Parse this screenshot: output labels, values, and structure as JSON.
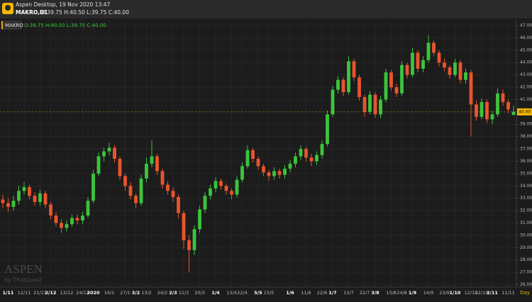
{
  "header": {
    "app_title": "Aspen Desktop, 19 Nov 2020 13:47",
    "symbol": "MAKRO,D1",
    "ohlc": "O:39.75 H:40.50 L:39.75 C:40.00"
  },
  "chart_data": {
    "type": "candlestick",
    "legend_label": "MAKRO",
    "legend_ohlc": "O:39.75 H:40.50 L:39.75 C:40.00",
    "watermark": {
      "title": "ASPEN",
      "subtitle": "by ThaiQuest"
    },
    "timeframe": "Day",
    "up_color": "#3cc43c",
    "down_color": "#e8552d",
    "last_price": {
      "value": 40,
      "label": "40.00"
    },
    "categories": [
      null,
      "1/11",
      null,
      null,
      "12/11",
      null,
      null,
      "21/11",
      null,
      "2/12",
      null,
      null,
      "13/12",
      null,
      null,
      "24/12",
      null,
      "2020",
      null,
      null,
      "16/1",
      null,
      null,
      "27/1",
      null,
      "3/2",
      null,
      "13/2",
      null,
      null,
      "24/2",
      null,
      "2/3",
      null,
      "11/3",
      null,
      null,
      "20/3",
      null,
      null,
      "1/4",
      null,
      null,
      "13/4",
      null,
      "22/4",
      null,
      null,
      "5/5",
      null,
      "15/5",
      null,
      null,
      null,
      "1/6",
      null,
      null,
      "11/6",
      null,
      null,
      "22/6",
      null,
      "1/7",
      null,
      null,
      "13/7",
      null,
      null,
      "22/7",
      null,
      "3/8",
      null,
      null,
      "13/8",
      null,
      "24/8",
      null,
      "1/9",
      null,
      null,
      "14/9",
      null,
      null,
      "23/9",
      null,
      "1/10",
      null,
      null,
      "12/10",
      null,
      "22/10",
      null,
      "2/11",
      null,
      null,
      "11/11",
      null
    ],
    "open": [
      32.9,
      32.6,
      32.3,
      32.8,
      33.6,
      33.9,
      33.2,
      32.7,
      33.4,
      32.5,
      31.6,
      31.0,
      30.6,
      30.9,
      31.4,
      31.2,
      31.6,
      32.8,
      35.0,
      36.4,
      36.8,
      37.1,
      36.2,
      34.8,
      34.0,
      33.2,
      32.6,
      34.6,
      35.8,
      36.4,
      35.2,
      34.1,
      33.6,
      33.1,
      31.8,
      29.6,
      28.8,
      30.5,
      32.1,
      33.2,
      33.8,
      34.4,
      34.0,
      33.6,
      33.3,
      34.5,
      35.6,
      36.9,
      36.2,
      35.6,
      35.1,
      34.8,
      35.2,
      34.9,
      35.4,
      35.8,
      36.4,
      37.0,
      36.3,
      36.0,
      36.5,
      37.4,
      39.8,
      41.8,
      42.6,
      41.6,
      44.1,
      42.8,
      41.2,
      40.0,
      41.4,
      39.8,
      41.0,
      43.2,
      42.0,
      41.5,
      43.8,
      43.0,
      44.8,
      43.5,
      44.2,
      45.6,
      44.8,
      44.0,
      43.6,
      43.0,
      44.0,
      42.6,
      43.2,
      40.6,
      39.6,
      40.8,
      39.4,
      39.8,
      41.5,
      40.8,
      39.75
    ],
    "high": [
      33.3,
      33.0,
      33.2,
      34.0,
      34.3,
      34.1,
      33.5,
      33.7,
      33.6,
      32.7,
      31.9,
      31.3,
      31.2,
      31.7,
      31.7,
      31.9,
      33.1,
      35.3,
      36.7,
      37.1,
      37.5,
      37.3,
      36.4,
      35.0,
      34.3,
      33.4,
      34.9,
      36.3,
      37.7,
      36.6,
      35.4,
      34.4,
      33.9,
      33.3,
      32.0,
      30.0,
      30.8,
      32.4,
      33.5,
      34.1,
      34.7,
      34.6,
      34.2,
      33.8,
      34.8,
      35.9,
      37.3,
      37.1,
      36.4,
      35.8,
      35.3,
      35.5,
      35.4,
      35.7,
      36.1,
      36.7,
      37.3,
      37.2,
      36.6,
      36.8,
      37.7,
      40.1,
      42.1,
      42.9,
      42.8,
      44.5,
      44.3,
      43.0,
      41.4,
      41.7,
      41.6,
      41.3,
      43.5,
      43.4,
      42.3,
      44.1,
      44.0,
      45.2,
      45.0,
      44.5,
      46.2,
      45.8,
      45.0,
      44.3,
      43.8,
      44.3,
      44.2,
      43.5,
      43.4,
      40.9,
      41.1,
      41.0,
      40.1,
      41.9,
      41.8,
      41.0,
      40.5
    ],
    "low": [
      32.2,
      31.9,
      32.0,
      32.5,
      33.3,
      32.9,
      32.4,
      32.4,
      32.2,
      31.3,
      30.7,
      30.2,
      30.3,
      30.7,
      30.9,
      30.9,
      31.4,
      32.6,
      34.8,
      36.0,
      36.5,
      35.9,
      34.5,
      33.6,
      32.9,
      32.2,
      32.4,
      34.3,
      35.5,
      34.9,
      33.8,
      33.3,
      32.7,
      31.4,
      28.9,
      27.0,
      28.4,
      30.2,
      31.8,
      32.9,
      33.5,
      33.7,
      33.3,
      32.9,
      33.1,
      34.3,
      35.4,
      35.9,
      35.3,
      34.8,
      34.4,
      34.5,
      34.6,
      34.6,
      35.1,
      35.5,
      36.1,
      36.0,
      35.6,
      35.7,
      36.2,
      37.2,
      39.6,
      41.5,
      41.3,
      41.4,
      42.5,
      40.9,
      39.6,
      39.8,
      39.5,
      39.5,
      40.8,
      41.7,
      41.2,
      41.3,
      42.7,
      42.8,
      43.2,
      43.2,
      44.0,
      44.5,
      43.7,
      43.3,
      42.7,
      42.8,
      42.3,
      42.3,
      38.0,
      39.3,
      39.4,
      39.1,
      39.0,
      39.6,
      40.5,
      39.9,
      39.75
    ],
    "close": [
      32.6,
      32.3,
      32.8,
      33.6,
      33.9,
      33.2,
      32.7,
      33.4,
      32.5,
      31.6,
      31.0,
      30.6,
      30.9,
      31.4,
      31.2,
      31.6,
      32.8,
      35.0,
      36.4,
      36.8,
      37.1,
      36.2,
      34.8,
      34.0,
      33.2,
      32.6,
      34.6,
      35.8,
      36.4,
      35.2,
      34.1,
      33.6,
      33.1,
      31.8,
      29.6,
      28.8,
      30.5,
      32.1,
      33.2,
      33.8,
      34.4,
      34.0,
      33.6,
      33.3,
      34.5,
      35.6,
      36.9,
      36.2,
      35.6,
      35.1,
      34.8,
      35.2,
      34.9,
      35.4,
      35.8,
      36.4,
      37.0,
      36.3,
      36.0,
      36.5,
      37.4,
      39.8,
      41.8,
      42.6,
      41.6,
      44.1,
      42.8,
      41.2,
      40.0,
      41.4,
      39.8,
      41.0,
      43.2,
      42.0,
      41.5,
      43.8,
      43.0,
      44.8,
      43.5,
      44.2,
      45.6,
      44.8,
      44.0,
      43.6,
      43.0,
      44.0,
      42.6,
      43.2,
      40.6,
      39.6,
      40.8,
      39.4,
      39.8,
      41.5,
      40.8,
      40.2,
      40.0
    ],
    "ylim": [
      25.8,
      47.46
    ],
    "yticks": [
      {
        "value": 26,
        "label": "26.00"
      },
      {
        "value": 27,
        "label": "27.00"
      },
      {
        "value": 28,
        "label": "28.00"
      },
      {
        "value": 29,
        "label": "29.00"
      },
      {
        "value": 30,
        "label": "30.00"
      },
      {
        "value": 31,
        "label": "31.00"
      },
      {
        "value": 32,
        "label": "32.00"
      },
      {
        "value": 33,
        "label": "33.00"
      },
      {
        "value": 34,
        "label": "34.00"
      },
      {
        "value": 35,
        "label": "35.00"
      },
      {
        "value": 36,
        "label": "36.00"
      },
      {
        "value": 37,
        "label": "37.00"
      },
      {
        "value": 38,
        "label": "38.00"
      },
      {
        "value": 39,
        "label": "39.00"
      },
      {
        "value": 40,
        "label": "40.00"
      },
      {
        "value": 41,
        "label": "41.00"
      },
      {
        "value": 42,
        "label": "42.00"
      },
      {
        "value": 43,
        "label": "43.00"
      },
      {
        "value": 44,
        "label": "44.00"
      },
      {
        "value": 45,
        "label": "45.00"
      },
      {
        "value": 46,
        "label": "46.00"
      },
      {
        "value": 47,
        "label": "47.00"
      }
    ],
    "grid": true
  }
}
